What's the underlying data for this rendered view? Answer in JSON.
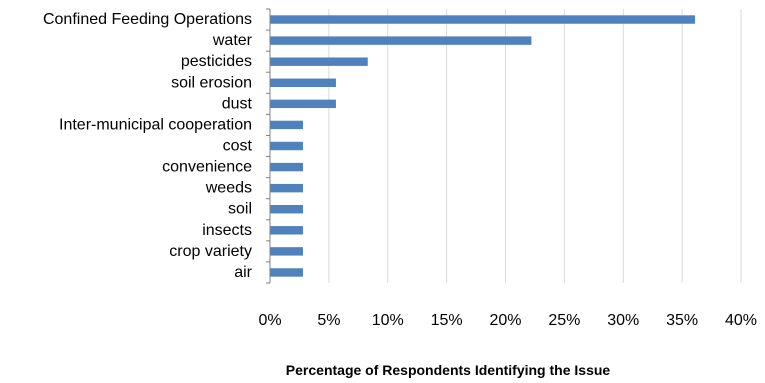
{
  "chart_data": {
    "type": "bar",
    "orientation": "horizontal",
    "categories": [
      "Confined Feeding Operations",
      "water",
      "pesticides",
      "soil erosion",
      "dust",
      "Inter-municipal cooperation",
      "cost",
      "convenience",
      "weeds",
      "soil",
      "insects",
      "crop variety",
      "air"
    ],
    "values": [
      36.1,
      22.2,
      8.3,
      5.6,
      5.6,
      2.8,
      2.8,
      2.8,
      2.8,
      2.8,
      2.8,
      2.8,
      2.8
    ],
    "title": "",
    "xlabel": "Percentage of Respondents Identifying the Issue",
    "ylabel": "",
    "xlim": [
      0,
      40
    ],
    "x_ticks": [
      "0%",
      "5%",
      "10%",
      "15%",
      "20%",
      "25%",
      "30%",
      "35%",
      "40%"
    ],
    "grid": true,
    "legend": "none",
    "bar_color": "#4F81BD",
    "grid_color": "#D9D9D9"
  }
}
